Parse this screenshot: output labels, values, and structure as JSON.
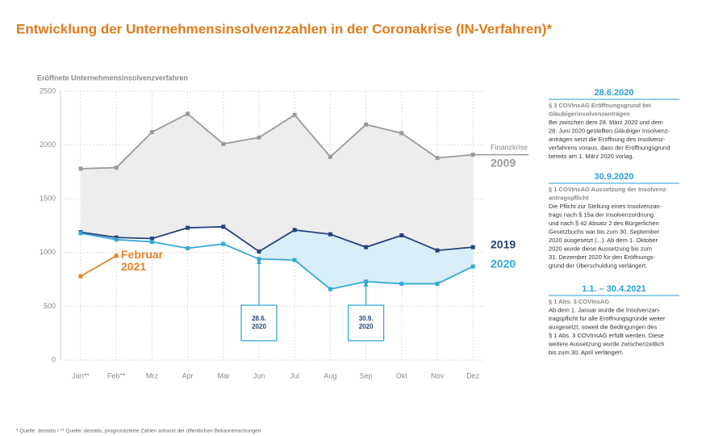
{
  "chart_data": {
    "type": "line",
    "title": "Entwicklung der Unternehmensinsolvenzzahlen in der Coronakrise (IN-Verfahren)*",
    "y_label": "Eröffnete Unternehmensinsolvenzverfahren",
    "categories": [
      "Jan**",
      "Feb**",
      "Mrz",
      "Apr",
      "Mai",
      "Jun",
      "Jul",
      "Aug",
      "Sep",
      "Okt",
      "Nov",
      "Dez"
    ],
    "ylim": [
      0,
      2500
    ],
    "yticks": [
      0,
      500,
      1000,
      1500,
      2000,
      2500
    ],
    "grid": true,
    "series": [
      {
        "name": "2009",
        "color": "#9a9a9a",
        "values": [
          1780,
          1790,
          2120,
          2290,
          2010,
          2070,
          2280,
          1890,
          2190,
          2110,
          1880,
          1910
        ]
      },
      {
        "name": "2019",
        "color": "#23427c",
        "values": [
          1190,
          1140,
          1130,
          1230,
          1240,
          1010,
          1210,
          1170,
          1050,
          1160,
          1020,
          1050
        ]
      },
      {
        "name": "2020",
        "color": "#34a8da",
        "values": [
          1180,
          1120,
          1100,
          1040,
          1080,
          940,
          930,
          660,
          730,
          710,
          710,
          870
        ]
      },
      {
        "name": "Februar 2021",
        "color": "#e8822a",
        "values": [
          780,
          970,
          null,
          null,
          null,
          null,
          null,
          null,
          null,
          null,
          null,
          null
        ]
      }
    ],
    "series_note": "Finanzkrise",
    "callouts": [
      {
        "text": "28.6. 2020",
        "category": "Jun"
      },
      {
        "text": "30.9. 2020",
        "category": "Sep"
      }
    ],
    "sidebar": [
      {
        "heading": "28.6.2020",
        "subtitle": [
          "§ 3 COVInsAG Eröffnungsgrund bei",
          "Gläubigerinsolvenzanträgen"
        ],
        "body": [
          "Bei zwischen dem 28. März 2020 und dem",
          "28. Juni 2020 gestellten Gläubiger Insolvenz-",
          "anträgen setzt die Eröffnung des Insolvenz-",
          "verfahrens voraus, dass der Eröffnungsgrund",
          "bereits am 1. März 2020 vorlag."
        ]
      },
      {
        "heading": "30.9.2020",
        "subtitle": [
          "§ 1 COVInsAG Aussetzung der Insolvenz-",
          "antragspflicht"
        ],
        "body": [
          "Die Pflicht zur Stellung eines Insolvenzan-",
          "trags nach § 15a der Insolvenzordnung",
          "und nach § 42 Absatz 2 des Bürgerlichen",
          "Gesetzbuchs war bis zum 30. September",
          "2020 ausgesetzt (...). Ab dem 1. Oktober",
          "2020 wurde diese Aussetzung bis zum",
          "31. Dezember 2020 für den Eröffnungs-",
          "grund der Überschuldung verlängert."
        ]
      },
      {
        "heading": "1.1. – 30.4.2021",
        "subtitle": [
          "§ 1 Abs. 3 COVInsAG"
        ],
        "body": [
          "Ab dem 1. Januar wurde die Insolvenzan-",
          "tragspflicht für alle Eröffnungsgründe weiter",
          "ausgesetzt, soweit die Bedingungen des",
          "§ 1 Abs. 3 COVInsAG erfüllt werden. Diese",
          "weitere Aussetzung wurde zwischenzeitlich",
          "bis zum 30. April verlängert."
        ]
      }
    ],
    "footnote": "* Quelle: destatis / ** Quelle: destatis, prognostizierte Zahlen anhand der öffentlichen Bekanntmachungen"
  }
}
